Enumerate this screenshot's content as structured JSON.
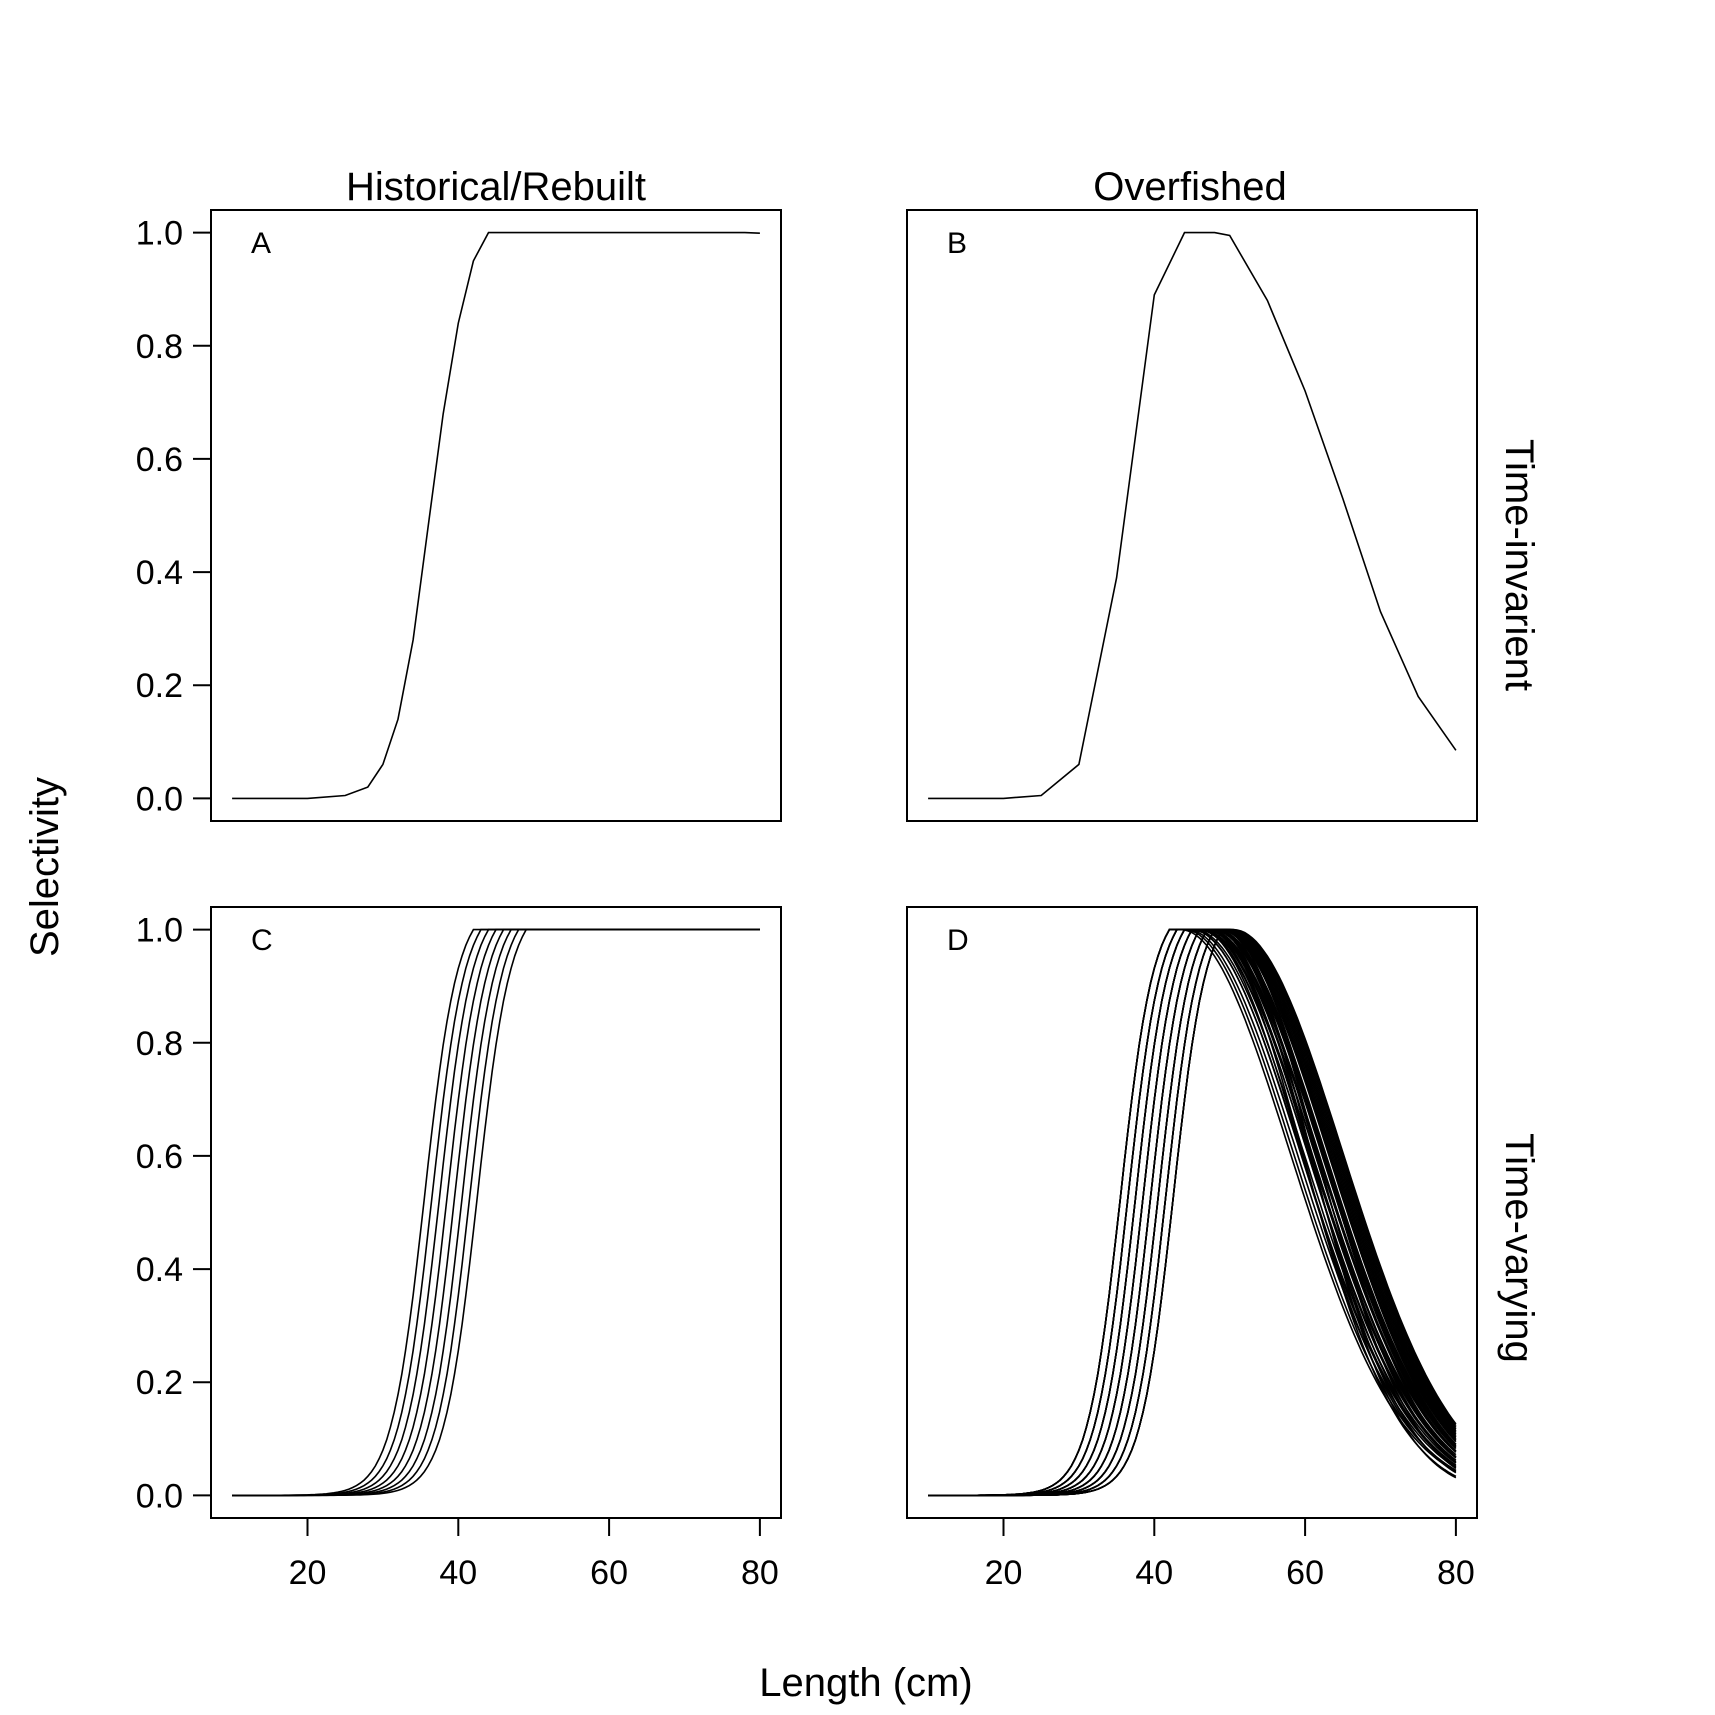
{
  "figure": {
    "x_axis_title": "Length (cm)",
    "y_axis_title": "Selectivity",
    "column_titles": [
      "Historical/Rebuilt",
      "Overfished"
    ],
    "row_titles": [
      "Time-invarient",
      "Time-varying"
    ]
  },
  "chart_data": [
    {
      "type": "line",
      "panel": "A",
      "column": "Historical/Rebuilt",
      "row": "Time-invarient",
      "xlim": [
        10,
        80
      ],
      "ylim": [
        0.0,
        1.0
      ],
      "x_ticks": [
        "20",
        "40",
        "60",
        "80"
      ],
      "y_ticks": [
        "0.0",
        "0.2",
        "0.4",
        "0.6",
        "0.8",
        "1.0"
      ],
      "show_x_ticks": false,
      "show_y_ticks": true,
      "selectivity": {
        "form": "asymptotic",
        "l50": 37.5,
        "width": 2.2,
        "peak": 44
      },
      "series_count": 1,
      "x": [
        10,
        20,
        25,
        28,
        30,
        32,
        34,
        36,
        38,
        40,
        42,
        44,
        50,
        60,
        70,
        78,
        80
      ],
      "y": [
        0.0,
        0.0,
        0.005,
        0.02,
        0.06,
        0.14,
        0.28,
        0.48,
        0.68,
        0.84,
        0.95,
        1.0,
        1.0,
        1.0,
        1.0,
        1.0,
        0.999
      ]
    },
    {
      "type": "line",
      "panel": "B",
      "column": "Overfished",
      "row": "Time-invarient",
      "xlim": [
        10,
        80
      ],
      "ylim": [
        0.0,
        1.0
      ],
      "x_ticks": [
        "20",
        "40",
        "60",
        "80"
      ],
      "y_ticks": [
        "0.0",
        "0.2",
        "0.4",
        "0.6",
        "0.8",
        "1.0"
      ],
      "show_x_ticks": false,
      "show_y_ticks": false,
      "selectivity": {
        "form": "dome",
        "l50": 37.5,
        "width": 2.2,
        "peak": 44,
        "desc_mid": 61.5,
        "desc_scale": 7.2
      },
      "series_count": 1,
      "x": [
        10,
        20,
        25,
        30,
        35,
        40,
        44,
        46,
        48,
        50,
        55,
        60,
        65,
        70,
        75,
        80
      ],
      "y": [
        0.0,
        0.0,
        0.005,
        0.06,
        0.39,
        0.89,
        1.0,
        1.0,
        1.0,
        0.995,
        0.88,
        0.72,
        0.53,
        0.33,
        0.18,
        0.085
      ]
    },
    {
      "type": "line",
      "panel": "C",
      "column": "Historical/Rebuilt",
      "row": "Time-varying",
      "xlim": [
        10,
        80
      ],
      "ylim": [
        0.0,
        1.0
      ],
      "x_ticks": [
        "20",
        "40",
        "60",
        "80"
      ],
      "y_ticks": [
        "0.0",
        "0.2",
        "0.4",
        "0.6",
        "0.8",
        "1.0"
      ],
      "show_x_ticks": true,
      "show_y_ticks": true,
      "selectivity": {
        "form": "asymptotic",
        "width": 2.2,
        "l50_first": 35.5,
        "l50_step": 1.0,
        "peak_offset": 6.5
      },
      "series_count": 8,
      "note_x": "each curve rises from 0 near 20-30 cm to 1.0 between 40 and 47 cm; flat at 1.0 out to 80 cm"
    },
    {
      "type": "line",
      "panel": "D",
      "column": "Overfished",
      "row": "Time-varying",
      "xlim": [
        10,
        80
      ],
      "ylim": [
        0.0,
        1.0
      ],
      "x_ticks": [
        "20",
        "40",
        "60",
        "80"
      ],
      "y_ticks": [
        "0.0",
        "0.2",
        "0.4",
        "0.6",
        "0.8",
        "1.0"
      ],
      "show_x_ticks": true,
      "show_y_ticks": false,
      "selectivity": {
        "form": "dome",
        "width": 2.2,
        "l50_first": 35.5,
        "l50_step": 1.0,
        "ascending_curves": 8,
        "desc_mid_min": 57.5,
        "desc_mid_max": 64.5,
        "desc_scale": 6.8
      },
      "series_count": 40,
      "note_y": "descending limbs end between about 0.05 and 0.18 at 80 cm"
    }
  ]
}
